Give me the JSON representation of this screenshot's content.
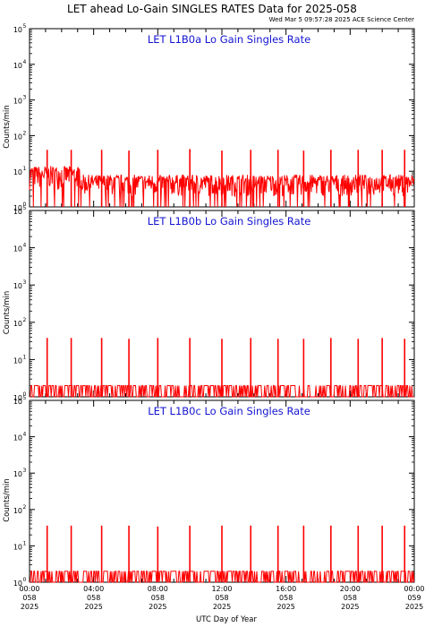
{
  "chart_data": {
    "type": "line",
    "title": "LET ahead Lo-Gain SINGLES RATES Data for 2025-058",
    "timestamp": "Wed Mar  5 09:57:28 2025 ACE Science Center",
    "xlabel": "UTC Day of Year",
    "ylabel": "Counts/min",
    "yscale": "log",
    "ylim": [
      1,
      100000
    ],
    "xlim": [
      0,
      24
    ],
    "line_color": "#ff0000",
    "title_color": "#1414d2",
    "y_ticks": [
      {
        "base": "10",
        "exp": "0",
        "value": 1
      },
      {
        "base": "10",
        "exp": "1",
        "value": 10
      },
      {
        "base": "10",
        "exp": "2",
        "value": 100
      },
      {
        "base": "10",
        "exp": "3",
        "value": 1000
      },
      {
        "base": "10",
        "exp": "4",
        "value": 10000
      },
      {
        "base": "10",
        "exp": "5",
        "value": 100000
      }
    ],
    "x_ticks": [
      {
        "hour": 0,
        "time": "00:00",
        "doy": "058",
        "year": "2025"
      },
      {
        "hour": 4,
        "time": "04:00",
        "doy": "058",
        "year": "2025"
      },
      {
        "hour": 8,
        "time": "08:00",
        "doy": "058",
        "year": "2025"
      },
      {
        "hour": 12,
        "time": "12:00",
        "doy": "058",
        "year": "2025"
      },
      {
        "hour": 16,
        "time": "16:00",
        "doy": "058",
        "year": "2025"
      },
      {
        "hour": 20,
        "time": "20:00",
        "doy": "058",
        "year": "2025"
      },
      {
        "hour": 24,
        "time": "00:00",
        "doy": "059",
        "year": "2025"
      }
    ],
    "panels": [
      {
        "name": "LET L1B0a Lo Gain Singles Rate",
        "baseline_range": [
          2,
          8
        ],
        "spikes": [
          {
            "x": 1.1,
            "y": 40
          },
          {
            "x": 2.6,
            "y": 40
          },
          {
            "x": 4.5,
            "y": 40
          },
          {
            "x": 6.2,
            "y": 38
          },
          {
            "x": 8.0,
            "y": 40
          },
          {
            "x": 10.0,
            "y": 42
          },
          {
            "x": 12.0,
            "y": 38
          },
          {
            "x": 13.8,
            "y": 40
          },
          {
            "x": 15.5,
            "y": 40
          },
          {
            "x": 17.1,
            "y": 38
          },
          {
            "x": 18.8,
            "y": 40
          },
          {
            "x": 20.5,
            "y": 40
          },
          {
            "x": 22.0,
            "y": 40
          },
          {
            "x": 23.4,
            "y": 40
          }
        ]
      },
      {
        "name": "LET L1B0b Lo Gain Singles Rate",
        "baseline_range": [
          1,
          2
        ],
        "spikes": [
          {
            "x": 1.1,
            "y": 38
          },
          {
            "x": 2.6,
            "y": 38
          },
          {
            "x": 4.5,
            "y": 38
          },
          {
            "x": 6.2,
            "y": 36
          },
          {
            "x": 8.0,
            "y": 38
          },
          {
            "x": 10.0,
            "y": 38
          },
          {
            "x": 12.0,
            "y": 36
          },
          {
            "x": 13.8,
            "y": 38
          },
          {
            "x": 15.5,
            "y": 36
          },
          {
            "x": 17.1,
            "y": 36
          },
          {
            "x": 18.8,
            "y": 38
          },
          {
            "x": 20.5,
            "y": 36
          },
          {
            "x": 22.0,
            "y": 38
          },
          {
            "x": 23.4,
            "y": 36
          }
        ]
      },
      {
        "name": "LET L1B0c Lo Gain Singles Rate",
        "baseline_range": [
          1,
          2
        ],
        "spikes": [
          {
            "x": 1.1,
            "y": 36
          },
          {
            "x": 2.6,
            "y": 36
          },
          {
            "x": 4.5,
            "y": 36
          },
          {
            "x": 6.2,
            "y": 36
          },
          {
            "x": 8.0,
            "y": 34
          },
          {
            "x": 10.0,
            "y": 36
          },
          {
            "x": 12.0,
            "y": 36
          },
          {
            "x": 13.8,
            "y": 36
          },
          {
            "x": 15.5,
            "y": 36
          },
          {
            "x": 17.1,
            "y": 36
          },
          {
            "x": 18.8,
            "y": 36
          },
          {
            "x": 20.5,
            "y": 36
          },
          {
            "x": 22.0,
            "y": 36
          },
          {
            "x": 23.4,
            "y": 36
          }
        ]
      }
    ]
  }
}
